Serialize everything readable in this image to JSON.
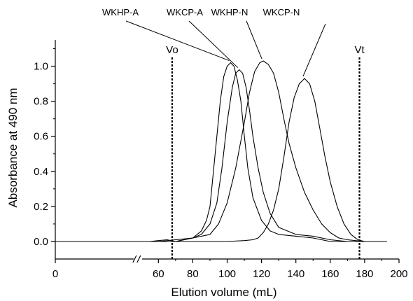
{
  "chart_data": {
    "type": "line",
    "title": "",
    "xlabel": "Elution volume (mL)",
    "ylabel": "Absorbance at  490 nm",
    "xlim": [
      0,
      200
    ],
    "ylim": [
      -0.1,
      1.15
    ],
    "axis_break": {
      "between": [
        0,
        60
      ],
      "symbol": "//"
    },
    "x_ticks": [
      {
        "value": 0,
        "label": "0"
      },
      {
        "value": 60,
        "label": "60"
      },
      {
        "value": 80,
        "label": "80"
      },
      {
        "value": 100,
        "label": "100"
      },
      {
        "value": 120,
        "label": "120"
      },
      {
        "value": 140,
        "label": "140"
      },
      {
        "value": 160,
        "label": "160"
      },
      {
        "value": 180,
        "label": "180"
      },
      {
        "value": 200,
        "label": "200"
      }
    ],
    "y_ticks": [
      {
        "value": 0.0,
        "label": "0.0"
      },
      {
        "value": 0.2,
        "label": "0.2"
      },
      {
        "value": 0.4,
        "label": "0.4"
      },
      {
        "value": 0.6,
        "label": "0.6"
      },
      {
        "value": 0.8,
        "label": "0.8"
      },
      {
        "value": 1.0,
        "label": "1.0"
      }
    ],
    "grid": false,
    "reference_lines": [
      {
        "label": "Vo",
        "x": 68
      },
      {
        "label": "Vt",
        "x": 177
      }
    ],
    "series": [
      {
        "name": "WKHP-A",
        "peak": [
          102,
          1.02
        ],
        "points": [
          [
            0,
            0.0
          ],
          [
            55,
            0.0
          ],
          [
            60,
            0.005
          ],
          [
            65,
            0.01
          ],
          [
            70,
            0.0
          ],
          [
            75,
            0.01
          ],
          [
            80,
            0.02
          ],
          [
            85,
            0.06
          ],
          [
            88,
            0.12
          ],
          [
            90,
            0.2
          ],
          [
            92,
            0.4
          ],
          [
            94,
            0.6
          ],
          [
            96,
            0.8
          ],
          [
            98,
            0.94
          ],
          [
            100,
            1.0
          ],
          [
            102,
            1.02
          ],
          [
            104,
            1.0
          ],
          [
            106,
            0.92
          ],
          [
            108,
            0.8
          ],
          [
            110,
            0.6
          ],
          [
            112,
            0.42
          ],
          [
            115,
            0.25
          ],
          [
            120,
            0.12
          ],
          [
            125,
            0.06
          ],
          [
            130,
            0.04
          ],
          [
            140,
            0.03
          ],
          [
            150,
            0.02
          ],
          [
            160,
            0.0
          ],
          [
            170,
            0.0
          ],
          [
            180,
            0.0
          ],
          [
            190,
            0.0
          ]
        ]
      },
      {
        "name": "WKCP-A",
        "peak": [
          107,
          0.98
        ],
        "points": [
          [
            0,
            0.0
          ],
          [
            60,
            0.0
          ],
          [
            70,
            0.01
          ],
          [
            80,
            0.02
          ],
          [
            85,
            0.04
          ],
          [
            90,
            0.1
          ],
          [
            94,
            0.22
          ],
          [
            97,
            0.42
          ],
          [
            100,
            0.68
          ],
          [
            103,
            0.88
          ],
          [
            105,
            0.96
          ],
          [
            107,
            0.98
          ],
          [
            109,
            0.96
          ],
          [
            111,
            0.88
          ],
          [
            113,
            0.75
          ],
          [
            115,
            0.6
          ],
          [
            118,
            0.42
          ],
          [
            121,
            0.28
          ],
          [
            125,
            0.16
          ],
          [
            130,
            0.08
          ],
          [
            140,
            0.04
          ],
          [
            150,
            0.03
          ],
          [
            160,
            0.01
          ],
          [
            170,
            0.0
          ],
          [
            180,
            0.0
          ],
          [
            190,
            0.0
          ]
        ]
      },
      {
        "name": "WKHP-N",
        "peak": [
          121,
          1.03
        ],
        "points": [
          [
            0,
            0.0
          ],
          [
            60,
            0.0
          ],
          [
            70,
            0.0
          ],
          [
            80,
            0.02
          ],
          [
            90,
            0.04
          ],
          [
            95,
            0.1
          ],
          [
            100,
            0.22
          ],
          [
            105,
            0.42
          ],
          [
            110,
            0.68
          ],
          [
            113,
            0.85
          ],
          [
            116,
            0.97
          ],
          [
            119,
            1.02
          ],
          [
            121,
            1.03
          ],
          [
            124,
            1.01
          ],
          [
            127,
            0.96
          ],
          [
            130,
            0.85
          ],
          [
            133,
            0.7
          ],
          [
            136,
            0.56
          ],
          [
            140,
            0.42
          ],
          [
            145,
            0.28
          ],
          [
            150,
            0.18
          ],
          [
            155,
            0.1
          ],
          [
            160,
            0.05
          ],
          [
            165,
            0.02
          ],
          [
            170,
            0.01
          ],
          [
            180,
            0.0
          ],
          [
            190,
            0.0
          ]
        ]
      },
      {
        "name": "WKCP-N",
        "peak": [
          145,
          0.93
        ],
        "points": [
          [
            0,
            0.0
          ],
          [
            60,
            0.0
          ],
          [
            80,
            0.0
          ],
          [
            100,
            0.0
          ],
          [
            110,
            0.005
          ],
          [
            115,
            0.01
          ],
          [
            118,
            0.02
          ],
          [
            121,
            0.05
          ],
          [
            124,
            0.1
          ],
          [
            127,
            0.18
          ],
          [
            130,
            0.3
          ],
          [
            133,
            0.48
          ],
          [
            136,
            0.68
          ],
          [
            139,
            0.82
          ],
          [
            142,
            0.9
          ],
          [
            145,
            0.93
          ],
          [
            148,
            0.9
          ],
          [
            151,
            0.8
          ],
          [
            154,
            0.64
          ],
          [
            157,
            0.48
          ],
          [
            160,
            0.34
          ],
          [
            164,
            0.2
          ],
          [
            168,
            0.1
          ],
          [
            172,
            0.04
          ],
          [
            176,
            0.01
          ],
          [
            180,
            0.0
          ],
          [
            185,
            0.0
          ],
          [
            190,
            0.0
          ],
          [
            193,
            0.0
          ]
        ]
      }
    ]
  }
}
